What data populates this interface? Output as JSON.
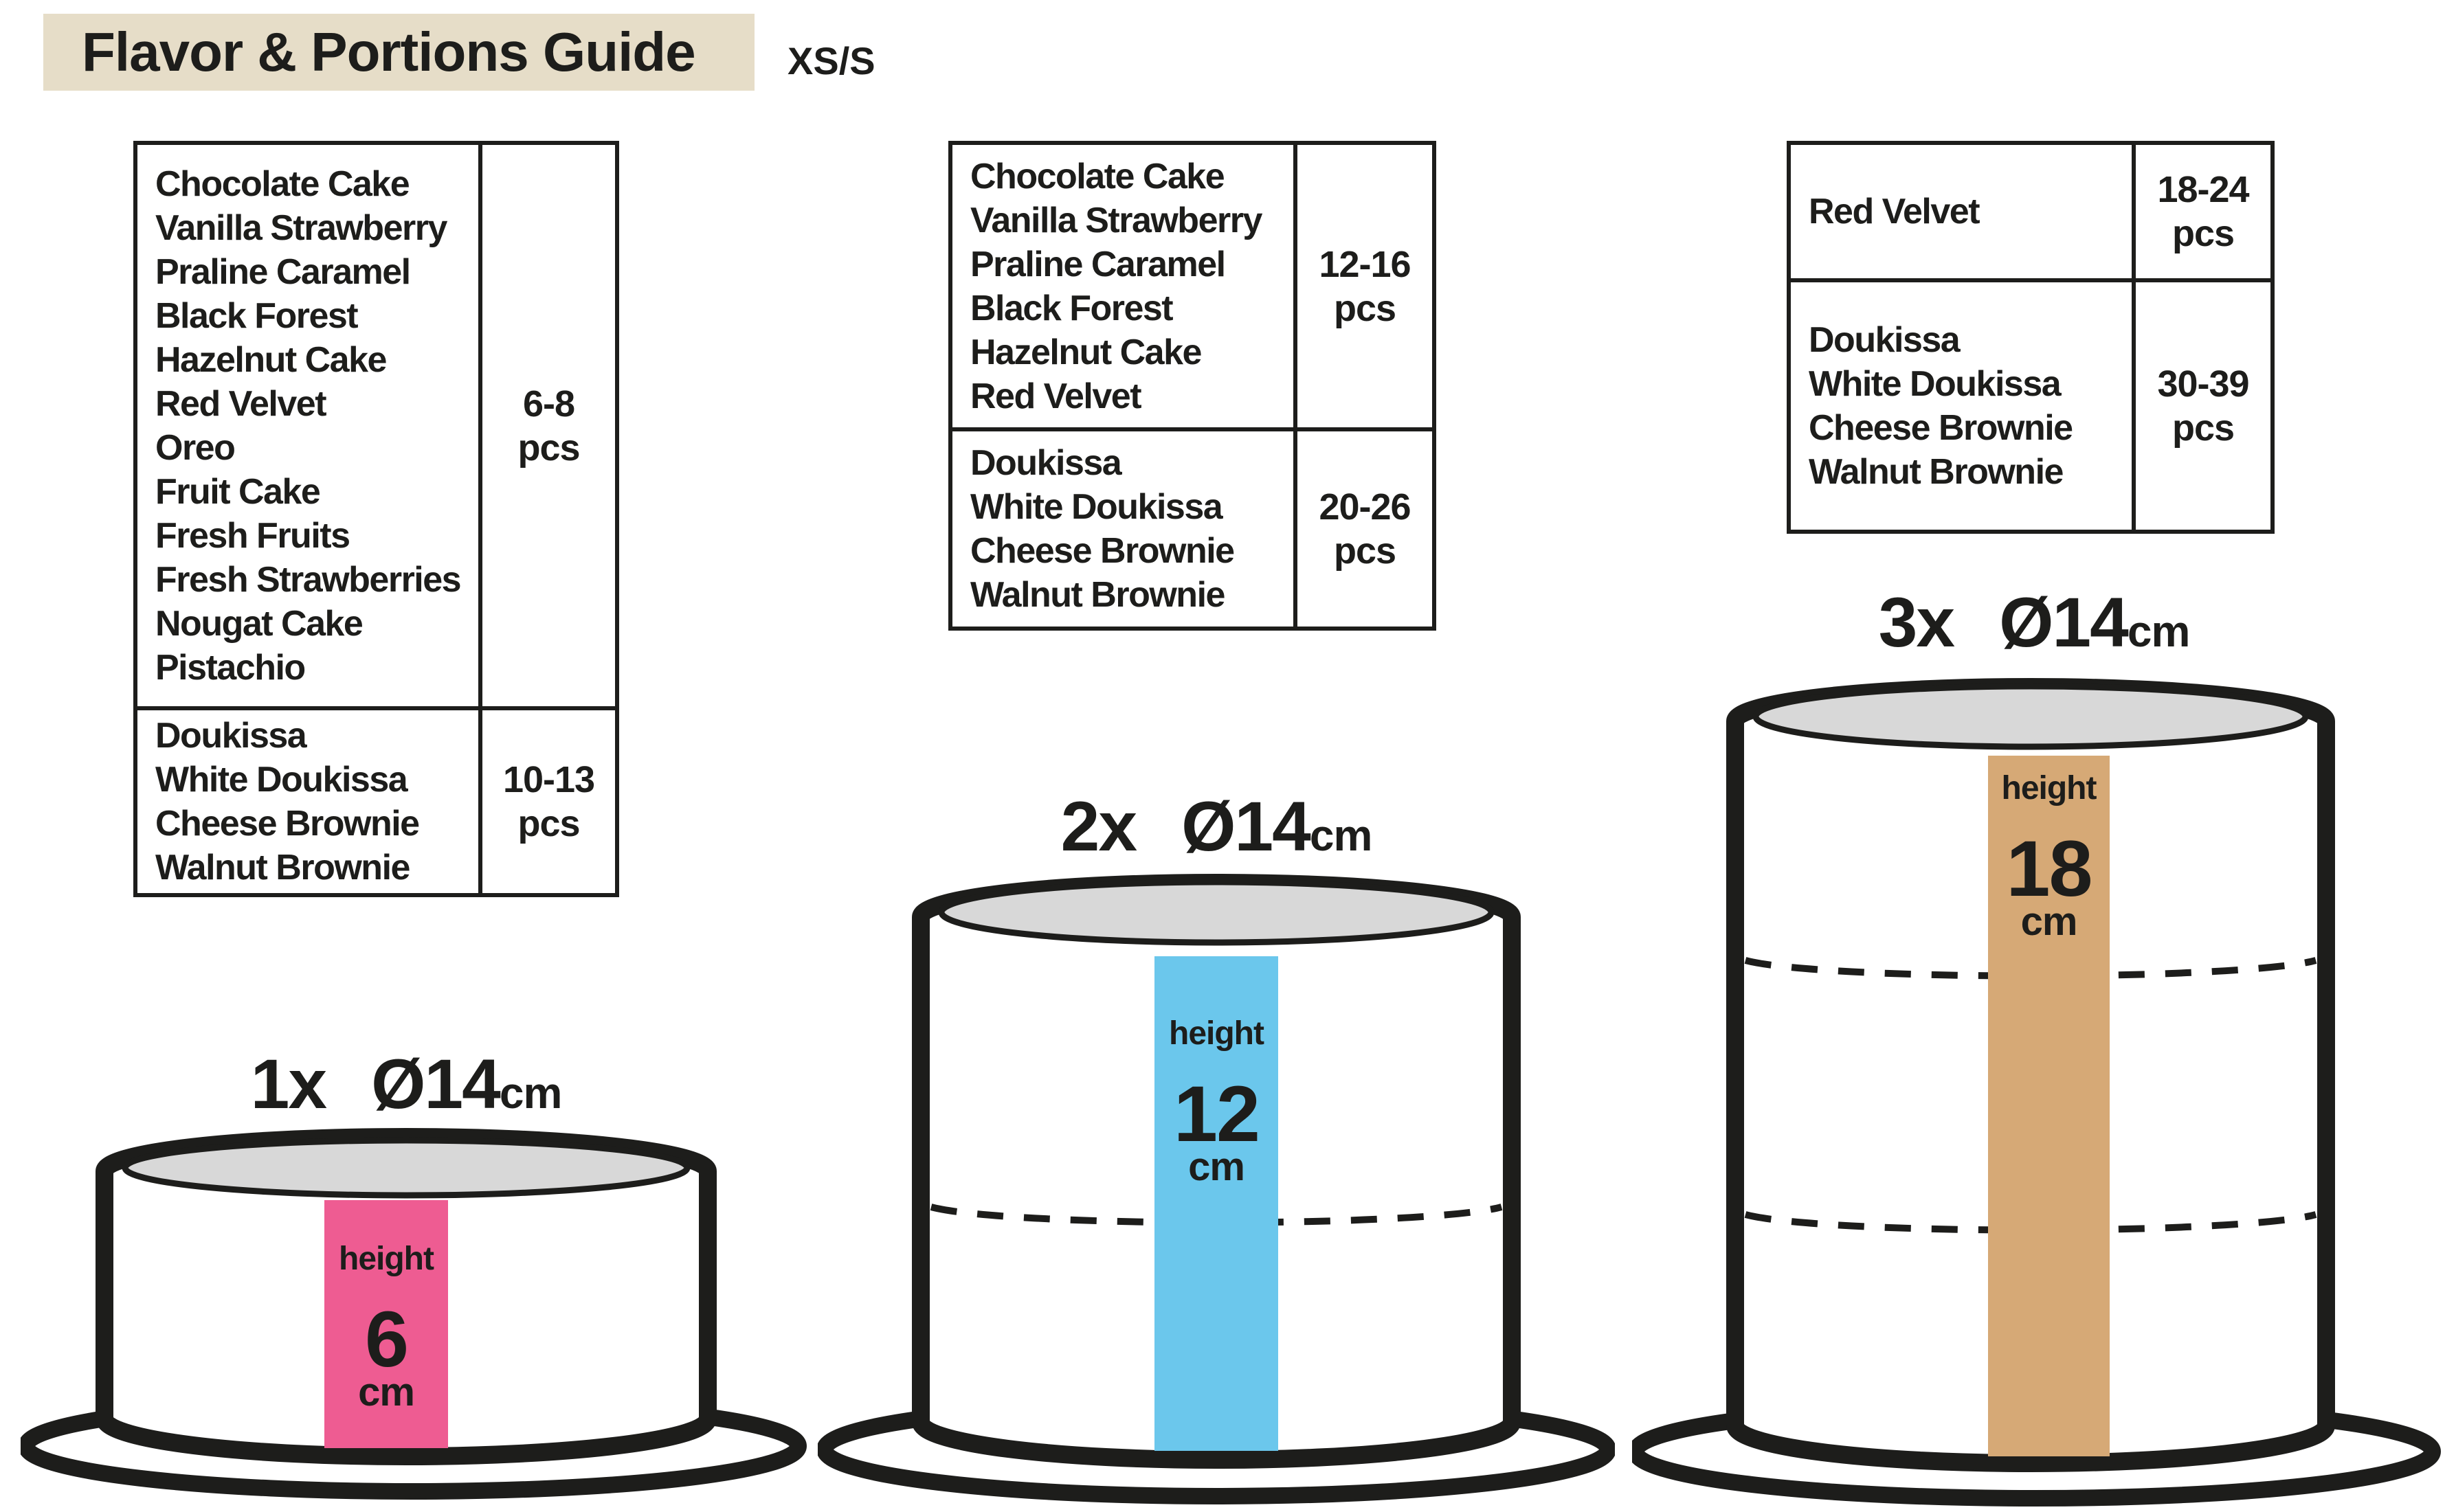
{
  "title": "Flavor & Portions Guide",
  "size_label": "XS/S",
  "colors": {
    "title_background": "#e6ddc8",
    "outline_black": "#1d1d1b",
    "cake_top_gray": "#d8d8d8",
    "stripe_pink": "#ee5c92",
    "stripe_blue": "#6bc7ec",
    "stripe_tan": "#d6a976"
  },
  "tables": [
    {
      "rows": [
        {
          "flavors": [
            "Chocolate Cake",
            "Vanilla Strawberry",
            "Praline Caramel",
            "Black Forest",
            "Hazelnut Cake",
            "Red Velvet",
            "Oreo",
            "Fruit Cake",
            "Fresh Fruits",
            "Fresh Strawberries",
            "Nougat Cake",
            "Pistachio"
          ],
          "portions": {
            "range": "6-8",
            "unit": "pcs"
          }
        },
        {
          "flavors": [
            "Doukissa",
            "White Doukissa",
            "Cheese Brownie",
            "Walnut Brownie"
          ],
          "portions": {
            "range": "10-13",
            "unit": "pcs"
          }
        }
      ]
    },
    {
      "rows": [
        {
          "flavors": [
            "Chocolate Cake",
            "Vanilla Strawberry",
            "Praline Caramel",
            "Black Forest",
            "Hazelnut Cake",
            "Red Velvet"
          ],
          "portions": {
            "range": "12-16",
            "unit": "pcs"
          }
        },
        {
          "flavors": [
            "Doukissa",
            "White Doukissa",
            "Cheese Brownie",
            "Walnut Brownie"
          ],
          "portions": {
            "range": "20-26",
            "unit": "pcs"
          }
        }
      ]
    },
    {
      "rows": [
        {
          "flavors": [
            "Red Velvet"
          ],
          "portions": {
            "range": "18-24",
            "unit": "pcs"
          }
        },
        {
          "flavors": [
            "Doukissa",
            "White Doukissa",
            "Cheese Brownie",
            "Walnut Brownie"
          ],
          "portions": {
            "range": "30-39",
            "unit": "pcs"
          }
        }
      ]
    }
  ],
  "cakes": [
    {
      "count": "1x",
      "diameter": "Ø14",
      "diameter_unit": "cm",
      "tiers": 1,
      "height_label": "height",
      "height_value": "6",
      "height_unit": "cm",
      "stripe_color": "#ee5c92"
    },
    {
      "count": "2x",
      "diameter": "Ø14",
      "diameter_unit": "cm",
      "tiers": 2,
      "height_label": "height",
      "height_value": "12",
      "height_unit": "cm",
      "stripe_color": "#6bc7ec"
    },
    {
      "count": "3x",
      "diameter": "Ø14",
      "diameter_unit": "cm",
      "tiers": 3,
      "height_label": "height",
      "height_value": "18",
      "height_unit": "cm",
      "stripe_color": "#d6a976"
    }
  ]
}
